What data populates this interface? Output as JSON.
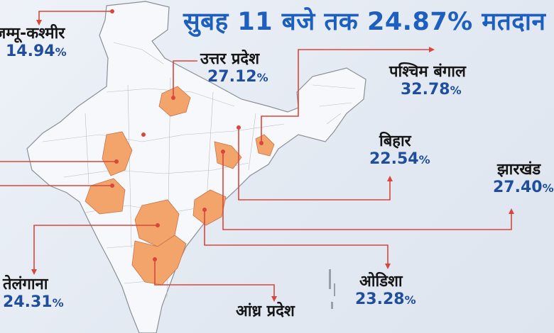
{
  "headline": "सुबह 11 बजे तक 24.87% मतदान",
  "accent_color": "#1d5fbf",
  "highlight_color": "#f2a46b",
  "connector_color": "#d9463c",
  "states": [
    {
      "name": "जम्मू-कश्मीर",
      "value": "14.94",
      "unit": "%"
    },
    {
      "name": "उत्तर प्रदेश",
      "value": "27.12",
      "unit": "%"
    },
    {
      "name": "पश्चिम बंगाल",
      "value": "32.78",
      "unit": "%"
    },
    {
      "name": "बिहार",
      "value": "22.54",
      "unit": "%"
    },
    {
      "name": "झारखंड",
      "value": "27.40",
      "unit": "%"
    },
    {
      "name": "ओडिशा",
      "value": "23.28",
      "unit": "%"
    },
    {
      "name": "तेलंगाना",
      "value": "24.31",
      "unit": "%"
    },
    {
      "name": "आंध्र प्रदेश",
      "value": "",
      "unit": ""
    }
  ]
}
